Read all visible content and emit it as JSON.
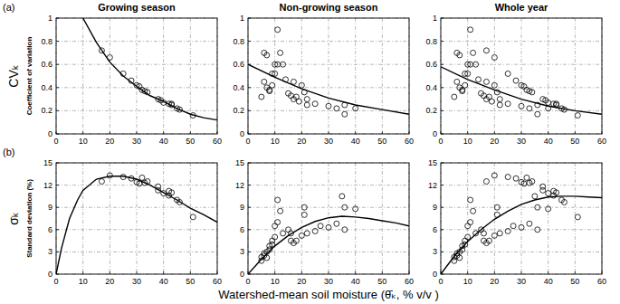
{
  "xlabel": "Watershed-mean soil moisture (θ̄ₖ, % v/v )",
  "chart_data": [
    {
      "type": "scatter",
      "title": "Growing season",
      "annotation": "(a)",
      "ylabel": "CVₖ",
      "ylabel_sub": "Coefficient of variation",
      "xlim": [
        0,
        60
      ],
      "xticks": [
        0,
        10,
        20,
        30,
        40,
        50,
        60
      ],
      "ylim": [
        0,
        1
      ],
      "yticks": [
        0,
        0.2,
        0.4,
        0.6,
        0.8,
        1
      ],
      "grid": true,
      "series": [
        {
          "type": "scatter",
          "marker": "circle",
          "color": "#000000",
          "x": [
            17,
            20,
            25,
            28,
            30,
            31,
            32,
            33,
            34,
            38,
            39,
            40,
            42,
            43,
            43,
            45,
            46,
            51
          ],
          "values": [
            0.72,
            0.66,
            0.52,
            0.46,
            0.42,
            0.41,
            0.38,
            0.37,
            0.36,
            0.3,
            0.29,
            0.27,
            0.26,
            0.25,
            0.26,
            0.22,
            0.21,
            0.16
          ]
        },
        {
          "type": "line",
          "line_style": "solid",
          "color": "#000000",
          "x": [
            10,
            15,
            20,
            25,
            30,
            35,
            40,
            45,
            50,
            55,
            60
          ],
          "values": [
            1.0,
            0.79,
            0.62,
            0.5,
            0.41,
            0.33,
            0.28,
            0.22,
            0.17,
            0.14,
            0.12
          ]
        }
      ]
    },
    {
      "type": "scatter",
      "title": "Non-growing season",
      "xlim": [
        0,
        60
      ],
      "xticks": [
        0,
        10,
        20,
        30,
        40,
        50,
        60
      ],
      "ylim": [
        0,
        1
      ],
      "yticks": [
        0,
        0.2,
        0.4,
        0.6,
        0.8,
        1
      ],
      "grid": true,
      "series": [
        {
          "type": "scatter",
          "marker": "circle",
          "color": "#000000",
          "x": [
            5,
            6,
            6,
            7,
            7,
            8,
            8,
            9,
            9,
            10,
            10,
            11,
            11,
            12,
            13,
            14,
            15,
            16,
            17,
            17,
            18,
            19,
            20,
            21,
            22,
            22,
            25,
            30,
            33,
            36,
            36,
            40
          ],
          "values": [
            0.32,
            0.7,
            0.45,
            0.68,
            0.4,
            0.38,
            0.37,
            0.42,
            0.52,
            0.52,
            0.6,
            0.6,
            0.9,
            0.7,
            0.6,
            0.47,
            0.35,
            0.33,
            0.3,
            0.45,
            0.32,
            0.28,
            0.42,
            0.36,
            0.3,
            0.25,
            0.26,
            0.24,
            0.22,
            0.17,
            0.25,
            0.22
          ]
        },
        {
          "type": "line",
          "line_style": "solid",
          "color": "#000000",
          "x": [
            0,
            10,
            20,
            30,
            40,
            50,
            60
          ],
          "values": [
            0.6,
            0.49,
            0.39,
            0.31,
            0.25,
            0.21,
            0.17
          ]
        }
      ]
    },
    {
      "type": "scatter",
      "title": "Whole year",
      "xlim": [
        0,
        60
      ],
      "xticks": [
        0,
        10,
        20,
        30,
        40,
        50,
        60
      ],
      "ylim": [
        0,
        1
      ],
      "yticks": [
        0,
        0.2,
        0.4,
        0.6,
        0.8,
        1
      ],
      "grid": true,
      "series": [
        {
          "type": "scatter",
          "marker": "circle",
          "color": "#000000",
          "x": [
            5,
            6,
            6,
            7,
            7,
            8,
            8,
            9,
            9,
            10,
            10,
            11,
            11,
            12,
            13,
            14,
            15,
            16,
            17,
            17,
            18,
            19,
            20,
            21,
            22,
            22,
            25,
            30,
            33,
            36,
            36,
            40,
            17,
            20,
            25,
            28,
            30,
            31,
            32,
            33,
            34,
            38,
            39,
            40,
            42,
            43,
            43,
            45,
            46,
            51
          ],
          "values": [
            0.32,
            0.7,
            0.45,
            0.68,
            0.4,
            0.38,
            0.37,
            0.42,
            0.52,
            0.52,
            0.6,
            0.6,
            0.9,
            0.7,
            0.6,
            0.47,
            0.35,
            0.33,
            0.3,
            0.45,
            0.32,
            0.28,
            0.42,
            0.36,
            0.3,
            0.25,
            0.26,
            0.24,
            0.22,
            0.17,
            0.25,
            0.22,
            0.72,
            0.66,
            0.52,
            0.46,
            0.42,
            0.41,
            0.38,
            0.37,
            0.36,
            0.3,
            0.29,
            0.27,
            0.26,
            0.25,
            0.26,
            0.22,
            0.21,
            0.16
          ]
        },
        {
          "type": "line",
          "line_style": "solid",
          "color": "#000000",
          "x": [
            0,
            10,
            20,
            30,
            40,
            50,
            60
          ],
          "values": [
            0.58,
            0.47,
            0.38,
            0.3,
            0.24,
            0.2,
            0.17
          ]
        }
      ]
    },
    {
      "type": "scatter",
      "annotation": "(b)",
      "ylabel": "σₖ",
      "ylabel_sub": "Standard deviation (%)",
      "xlim": [
        0,
        60
      ],
      "xticks": [
        0,
        10,
        20,
        30,
        40,
        50,
        60
      ],
      "ylim": [
        0,
        15
      ],
      "yticks": [
        0,
        3,
        6,
        9,
        12,
        15
      ],
      "grid": true,
      "series": [
        {
          "type": "scatter",
          "marker": "circle",
          "color": "#000000",
          "x": [
            17,
            20,
            25,
            28,
            30,
            31,
            32,
            33,
            34,
            38,
            38,
            40,
            42,
            42,
            43,
            45,
            46,
            51
          ],
          "values": [
            12.5,
            13.3,
            13.1,
            12.9,
            12.4,
            12.2,
            13.0,
            12.3,
            12.5,
            11.8,
            11.3,
            10.9,
            11.2,
            10.6,
            11.0,
            10.0,
            9.7,
            7.7
          ]
        },
        {
          "type": "line",
          "line_style": "solid",
          "color": "#000000",
          "x": [
            0,
            2,
            5,
            8,
            10,
            15,
            20,
            25,
            30,
            35,
            40,
            45,
            50,
            55,
            60
          ],
          "values": [
            0,
            3.5,
            7.5,
            10,
            11.3,
            12.8,
            13.2,
            13.2,
            12.8,
            12.0,
            11.0,
            10.0,
            8.9,
            8.0,
            7.0
          ]
        }
      ]
    },
    {
      "type": "scatter",
      "xlim": [
        0,
        60
      ],
      "xticks": [
        0,
        10,
        20,
        30,
        40,
        50,
        60
      ],
      "ylim": [
        0,
        15
      ],
      "yticks": [
        0,
        3,
        6,
        9,
        12,
        15
      ],
      "grid": true,
      "series": [
        {
          "type": "scatter",
          "marker": "circle",
          "color": "#000000",
          "x": [
            5,
            5,
            6,
            6,
            7,
            7,
            8,
            8,
            9,
            9,
            10,
            10,
            11,
            11,
            12,
            13,
            15,
            16,
            16,
            17,
            18,
            20,
            21,
            21,
            22,
            25,
            27,
            30,
            33,
            35,
            36,
            36,
            40
          ],
          "values": [
            1.8,
            2.3,
            2.5,
            2.8,
            2.2,
            3.0,
            3.3,
            3.8,
            4.0,
            4.5,
            5.0,
            6.5,
            7.0,
            10.0,
            8.5,
            5.5,
            6.0,
            4.5,
            5.5,
            4.2,
            4.5,
            5.2,
            8.0,
            9.0,
            5.5,
            5.8,
            6.5,
            6.3,
            6.8,
            10.5,
            6.0,
            9.0,
            8.8
          ]
        },
        {
          "type": "line",
          "line_style": "solid",
          "color": "#000000",
          "x": [
            0,
            5,
            10,
            15,
            20,
            25,
            30,
            35,
            40,
            45,
            50,
            55,
            60
          ],
          "values": [
            0,
            2.0,
            3.8,
            5.2,
            6.3,
            7.1,
            7.6,
            7.8,
            7.7,
            7.5,
            7.2,
            6.9,
            6.5
          ]
        }
      ]
    },
    {
      "type": "scatter",
      "xlim": [
        0,
        60
      ],
      "xticks": [
        0,
        10,
        20,
        30,
        40,
        50,
        60
      ],
      "ylim": [
        0,
        15
      ],
      "yticks": [
        0,
        3,
        6,
        9,
        12,
        15
      ],
      "grid": true,
      "series": [
        {
          "type": "scatter",
          "marker": "circle",
          "color": "#000000",
          "x": [
            5,
            5,
            6,
            6,
            7,
            7,
            8,
            8,
            9,
            9,
            10,
            10,
            11,
            11,
            12,
            13,
            15,
            16,
            16,
            17,
            18,
            20,
            21,
            21,
            22,
            25,
            27,
            30,
            33,
            35,
            36,
            36,
            40,
            17,
            20,
            25,
            28,
            30,
            31,
            32,
            33,
            34,
            38,
            38,
            40,
            42,
            42,
            43,
            45,
            46,
            51
          ],
          "values": [
            1.8,
            2.3,
            2.5,
            2.8,
            2.2,
            3.0,
            3.3,
            3.8,
            4.0,
            4.5,
            5.0,
            6.5,
            7.0,
            10.0,
            8.5,
            5.5,
            6.0,
            4.5,
            5.5,
            4.2,
            4.5,
            5.2,
            8.0,
            9.0,
            5.5,
            5.8,
            6.5,
            6.3,
            6.8,
            10.5,
            6.0,
            9.0,
            8.8,
            12.5,
            13.3,
            13.1,
            12.9,
            12.4,
            12.2,
            13.0,
            12.3,
            12.5,
            11.8,
            11.3,
            10.9,
            11.2,
            10.6,
            11.0,
            10.0,
            9.7,
            7.7
          ]
        },
        {
          "type": "line",
          "line_style": "solid",
          "color": "#000000",
          "x": [
            0,
            5,
            10,
            15,
            20,
            25,
            30,
            35,
            40,
            45,
            50,
            55,
            60
          ],
          "values": [
            0,
            2.4,
            4.4,
            6.0,
            7.4,
            8.5,
            9.4,
            10.0,
            10.4,
            10.5,
            10.5,
            10.4,
            10.3
          ]
        }
      ]
    }
  ]
}
